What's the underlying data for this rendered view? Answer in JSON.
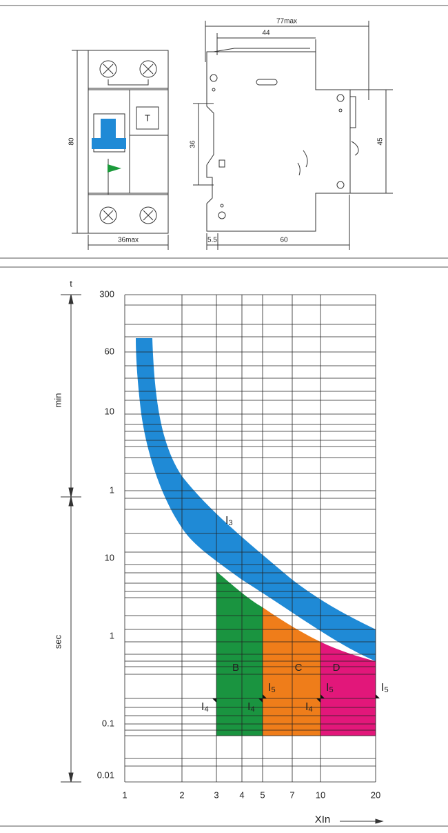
{
  "dimensions": {
    "overall_depth": "77max",
    "rear_depth": "44",
    "height": "80",
    "clip_height": "36",
    "front_height": "45",
    "width": "36max",
    "offset": "5.5",
    "base": "60",
    "test_button": "T"
  },
  "curve": {
    "time_axis": "t",
    "minute_label": "min",
    "second_label": "sec",
    "y_labels": [
      "300",
      "60",
      "10",
      "1",
      "10",
      "1",
      "0.1",
      "0.01"
    ],
    "x_labels": [
      "1",
      "2",
      "3",
      "4",
      "5",
      "7",
      "10",
      "20"
    ],
    "x_title": "XIn",
    "zones": [
      "B",
      "C",
      "D"
    ],
    "band_label": "I3",
    "lower_limits": [
      "I4",
      "I4",
      "I4"
    ],
    "upper_limits": [
      "I5",
      "I5",
      "I5"
    ]
  }
}
